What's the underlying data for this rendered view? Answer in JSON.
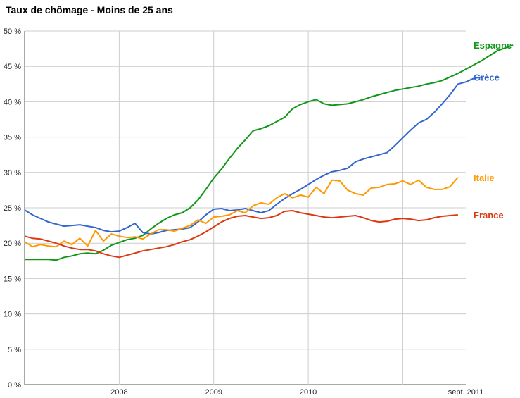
{
  "chart_data": {
    "type": "line",
    "title": "Taux de chômage - Moins de 25 ans",
    "xlabel": "",
    "ylabel": "",
    "ylim": [
      0,
      50
    ],
    "y_ticks": [
      0,
      5,
      10,
      15,
      20,
      25,
      30,
      35,
      40,
      45,
      50
    ],
    "y_tick_labels": [
      "0 %",
      "5 %",
      "10 %",
      "15 %",
      "20 %",
      "25 %",
      "30 %",
      "35 %",
      "40 %",
      "45 %",
      "50 %"
    ],
    "x_range": [
      "2007-01",
      "2011-09"
    ],
    "x_ticks": [
      {
        "date": "2008-01",
        "label": "2008"
      },
      {
        "date": "2009-01",
        "label": "2009"
      },
      {
        "date": "2010-01",
        "label": "2010"
      },
      {
        "date": "2011-09",
        "label": "sept. 2011"
      }
    ],
    "x_grid_dates": [
      "2008-01",
      "2009-01",
      "2010-01",
      "2011-01"
    ],
    "grid": true,
    "legend": "labels at line ends (right)",
    "start_month": "2007-01",
    "series": [
      {
        "name": "Espagne",
        "color": "#109618",
        "values": [
          17.7,
          17.7,
          17.7,
          17.7,
          17.6,
          18.0,
          18.2,
          18.5,
          18.6,
          18.5,
          19.0,
          19.7,
          20.1,
          20.5,
          20.7,
          21.1,
          22.0,
          22.8,
          23.5,
          24.0,
          24.3,
          25.0,
          26.1,
          27.6,
          29.2,
          30.5,
          32.0,
          33.4,
          34.6,
          35.9,
          36.2,
          36.6,
          37.2,
          37.8,
          39.0,
          39.6,
          40.0,
          40.3,
          39.7,
          39.5,
          39.6,
          39.7,
          40.0,
          40.3,
          40.7,
          41.0,
          41.3,
          41.6,
          41.8,
          42.0,
          42.2,
          42.5,
          42.7,
          43.0,
          43.5,
          44.0,
          44.6,
          45.2,
          45.8,
          46.5,
          47.2,
          47.6,
          48.0
        ]
      },
      {
        "name": "Grèce",
        "color": "#3366cc",
        "values": [
          24.7,
          24.0,
          23.5,
          23.0,
          22.7,
          22.4,
          22.5,
          22.6,
          22.4,
          22.2,
          21.8,
          21.6,
          21.7,
          22.2,
          22.8,
          21.5,
          21.3,
          21.5,
          21.8,
          21.9,
          22.0,
          22.2,
          23.0,
          24.0,
          24.8,
          24.9,
          24.6,
          24.7,
          24.9,
          24.6,
          24.3,
          24.6,
          25.5,
          26.3,
          27.0,
          27.6,
          28.3,
          29.0,
          29.6,
          30.1,
          30.3,
          30.6,
          31.5,
          31.9,
          32.2,
          32.5,
          32.8,
          33.8,
          34.9,
          36.0,
          37.0,
          37.5,
          38.5,
          39.7,
          41.0,
          42.5,
          42.8,
          43.3,
          43.5
        ]
      },
      {
        "name": "Italie",
        "color": "#ff9900",
        "values": [
          20.2,
          19.5,
          19.8,
          19.6,
          19.5,
          20.3,
          19.8,
          20.7,
          19.6,
          21.8,
          20.3,
          21.3,
          21.0,
          20.8,
          20.9,
          20.6,
          21.3,
          21.9,
          21.9,
          21.7,
          22.1,
          22.5,
          23.3,
          22.8,
          23.7,
          23.8,
          24.0,
          24.6,
          24.3,
          25.3,
          25.7,
          25.5,
          26.4,
          27.0,
          26.4,
          26.8,
          26.5,
          27.9,
          27.0,
          28.9,
          28.8,
          27.5,
          27.0,
          26.8,
          27.8,
          27.9,
          28.3,
          28.4,
          28.8,
          28.3,
          28.9,
          27.9,
          27.6,
          27.6,
          28.0,
          29.3
        ]
      },
      {
        "name": "France",
        "color": "#dc3912",
        "values": [
          21.0,
          20.7,
          20.6,
          20.3,
          20.0,
          19.6,
          19.3,
          19.1,
          19.1,
          18.9,
          18.5,
          18.2,
          18.0,
          18.3,
          18.6,
          18.9,
          19.1,
          19.3,
          19.5,
          19.8,
          20.2,
          20.5,
          21.0,
          21.6,
          22.3,
          23.0,
          23.5,
          23.8,
          23.9,
          23.7,
          23.5,
          23.6,
          23.9,
          24.5,
          24.6,
          24.3,
          24.1,
          23.9,
          23.7,
          23.6,
          23.7,
          23.8,
          23.9,
          23.6,
          23.2,
          23.0,
          23.1,
          23.4,
          23.5,
          23.4,
          23.2,
          23.3,
          23.6,
          23.8,
          23.9,
          24.0
        ]
      }
    ]
  }
}
